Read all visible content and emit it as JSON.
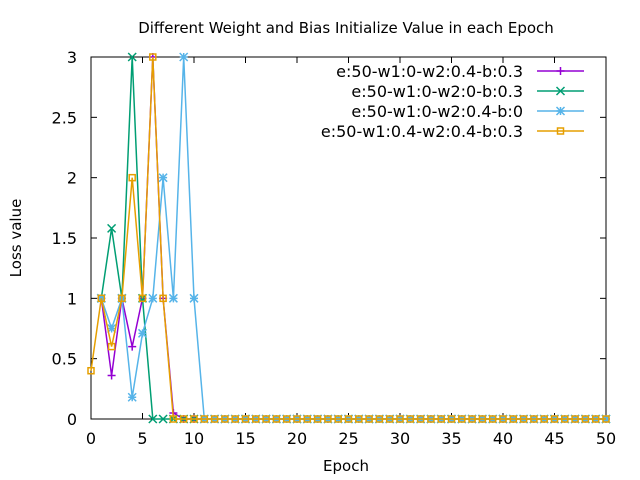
{
  "chart_data": {
    "type": "line",
    "title": "Different Weight and Bias Initialize Value in each Epoch",
    "xlabel": "Epoch",
    "ylabel": "Loss value",
    "xlim": [
      0,
      50
    ],
    "ylim": [
      0,
      3
    ],
    "xticks": [
      0,
      5,
      10,
      15,
      20,
      25,
      30,
      35,
      40,
      45,
      50
    ],
    "yticks": [
      0,
      0.5,
      1,
      1.5,
      2,
      2.5,
      3
    ],
    "grid": false,
    "legend_position": "top-right",
    "x": [
      1,
      2,
      3,
      4,
      5,
      6,
      7,
      8,
      9,
      10,
      11,
      12,
      13,
      14,
      15,
      16,
      17,
      18,
      19,
      20,
      21,
      22,
      23,
      24,
      25,
      26,
      27,
      28,
      29,
      30,
      31,
      32,
      33,
      34,
      35,
      36,
      37,
      38,
      39,
      40,
      41,
      42,
      43,
      44,
      45,
      46,
      47,
      48,
      49,
      50
    ],
    "series": [
      {
        "name": "e:50-w1:0-w2:0.4-b:0.3",
        "color": "#9400d3",
        "marker": "plus",
        "values": [
          1,
          0.36,
          1,
          0.6,
          1,
          3,
          1,
          0.05,
          0,
          0,
          0,
          0,
          0,
          0,
          0,
          0,
          0,
          0,
          0,
          0,
          0,
          0,
          0,
          0,
          0,
          0,
          0,
          0,
          0,
          0,
          0,
          0,
          0,
          0,
          0,
          0,
          0,
          0,
          0,
          0,
          0,
          0,
          0,
          0,
          0,
          0,
          0,
          0,
          0,
          0
        ]
      },
      {
        "name": "e:50-w1:0-w2:0-b:0.3",
        "color": "#009e73",
        "marker": "cross",
        "values": [
          1,
          1.58,
          1,
          3,
          1,
          0,
          0,
          0,
          0,
          0,
          0,
          0,
          0,
          0,
          0,
          0,
          0,
          0,
          0,
          0,
          0,
          0,
          0,
          0,
          0,
          0,
          0,
          0,
          0,
          0,
          0,
          0,
          0,
          0,
          0,
          0,
          0,
          0,
          0,
          0,
          0,
          0,
          0,
          0,
          0,
          0,
          0,
          0,
          0,
          0
        ]
      },
      {
        "name": "e:50-w1:0-w2:0.4-b:0",
        "color": "#56b4e9",
        "marker": "asterisk",
        "values": [
          1,
          0.75,
          1,
          0.18,
          0.71,
          1,
          2,
          1,
          3,
          1,
          0,
          0,
          0,
          0,
          0,
          0,
          0,
          0,
          0,
          0,
          0,
          0,
          0,
          0,
          0,
          0,
          0,
          0,
          0,
          0,
          0,
          0,
          0,
          0,
          0,
          0,
          0,
          0,
          0,
          0,
          0,
          0,
          0,
          0,
          0,
          0,
          0,
          0,
          0,
          0
        ]
      },
      {
        "name": "e:50-w1:0.4-w2:0.4-b:0.3",
        "color": "#e69f00",
        "marker": "square",
        "start": {
          "x": 0,
          "y": 0.4
        },
        "values": [
          1,
          0.6,
          1,
          2,
          1,
          3,
          1,
          0,
          0,
          0,
          0,
          0,
          0,
          0,
          0,
          0,
          0,
          0,
          0,
          0,
          0,
          0,
          0,
          0,
          0,
          0,
          0,
          0,
          0,
          0,
          0,
          0,
          0,
          0,
          0,
          0,
          0,
          0,
          0,
          0,
          0,
          0,
          0,
          0,
          0,
          0,
          0,
          0,
          0,
          0
        ]
      }
    ]
  }
}
